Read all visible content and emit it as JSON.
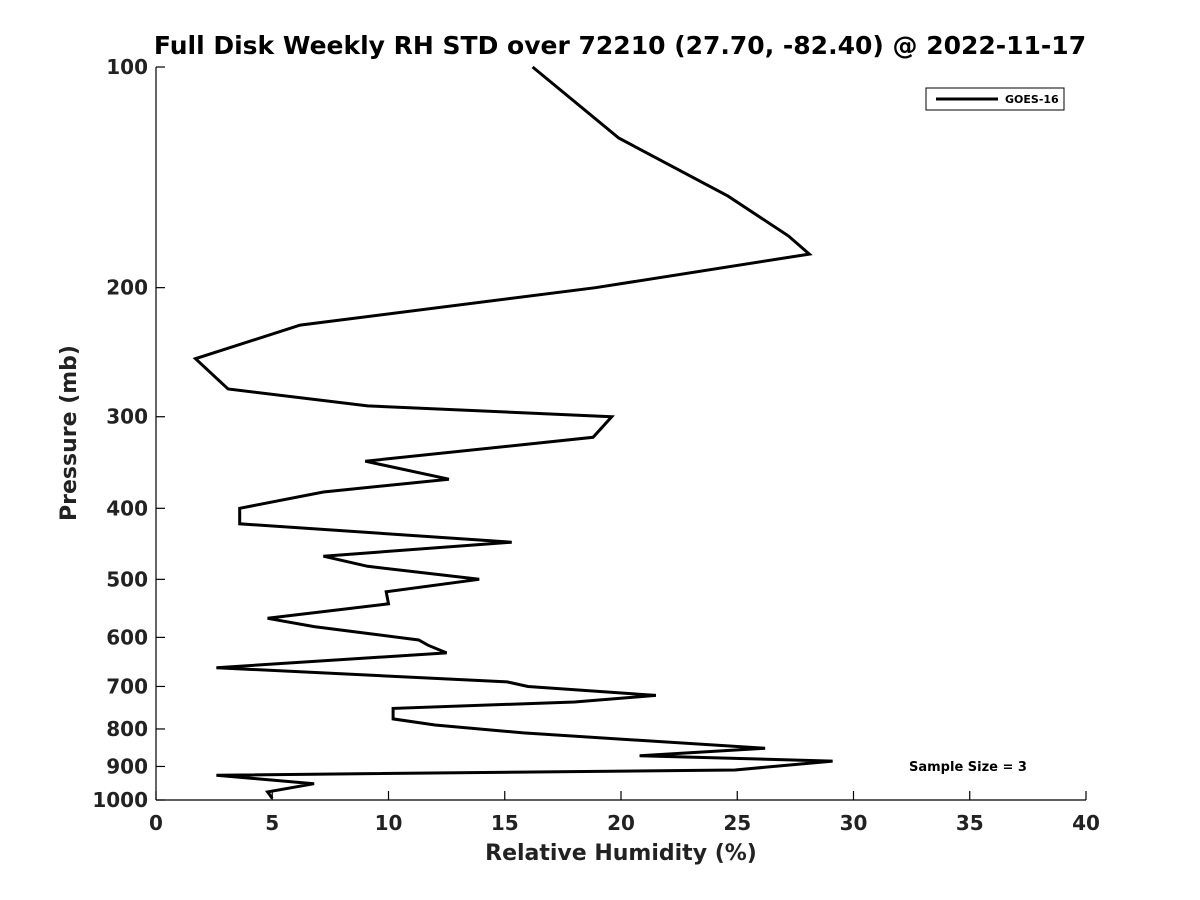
{
  "chart_data": {
    "type": "line",
    "title": "Full Disk Weekly RH STD over 72210 (27.70, -82.40) @ 2022-11-17",
    "xlabel": "Relative Humidity (%)",
    "ylabel": "Pressure (mb)",
    "xlim": [
      0,
      40
    ],
    "ylim": [
      100,
      1000
    ],
    "y_scale": "log",
    "y_reversed": true,
    "x_ticks": [
      0,
      5,
      10,
      15,
      20,
      25,
      30,
      35,
      40
    ],
    "x_tick_labels": [
      "0",
      "5",
      "10",
      "15",
      "20",
      "25",
      "30",
      "35",
      "40"
    ],
    "y_ticks": [
      100,
      200,
      300,
      400,
      500,
      600,
      700,
      800,
      900,
      1000
    ],
    "y_tick_labels": [
      "100",
      "200",
      "300",
      "400",
      "500",
      "600",
      "700",
      "800",
      "900",
      "1000"
    ],
    "grid": false,
    "legend_position": "top-right",
    "line_color": "#000000",
    "series": [
      {
        "name": "GOES-16",
        "points": [
          [
            16.2,
            100
          ],
          [
            19.9,
            125
          ],
          [
            24.6,
            150
          ],
          [
            27.2,
            170
          ],
          [
            28.1,
            180
          ],
          [
            18.9,
            200
          ],
          [
            6.2,
            225
          ],
          [
            1.7,
            250
          ],
          [
            3.1,
            275
          ],
          [
            9.1,
            290
          ],
          [
            19.6,
            300
          ],
          [
            18.8,
            320
          ],
          [
            9.0,
            345
          ],
          [
            12.6,
            365
          ],
          [
            7.2,
            380
          ],
          [
            3.6,
            400
          ],
          [
            3.6,
            420
          ],
          [
            15.3,
            445
          ],
          [
            7.2,
            465
          ],
          [
            9.1,
            480
          ],
          [
            13.9,
            500
          ],
          [
            9.9,
            520
          ],
          [
            10.0,
            540
          ],
          [
            4.8,
            565
          ],
          [
            6.8,
            580
          ],
          [
            11.3,
            605
          ],
          [
            11.7,
            615
          ],
          [
            12.5,
            630
          ],
          [
            2.6,
            660
          ],
          [
            15.1,
            690
          ],
          [
            16.0,
            700
          ],
          [
            21.5,
            720
          ],
          [
            18.0,
            735
          ],
          [
            10.2,
            750
          ],
          [
            10.2,
            775
          ],
          [
            12.0,
            790
          ],
          [
            15.8,
            810
          ],
          [
            26.2,
            850
          ],
          [
            20.8,
            870
          ],
          [
            29.1,
            885
          ],
          [
            24.9,
            910
          ],
          [
            2.6,
            925
          ],
          [
            6.8,
            950
          ],
          [
            4.8,
            975
          ],
          [
            5.0,
            995
          ]
        ]
      }
    ],
    "annotation": "Sample Size = 3"
  }
}
